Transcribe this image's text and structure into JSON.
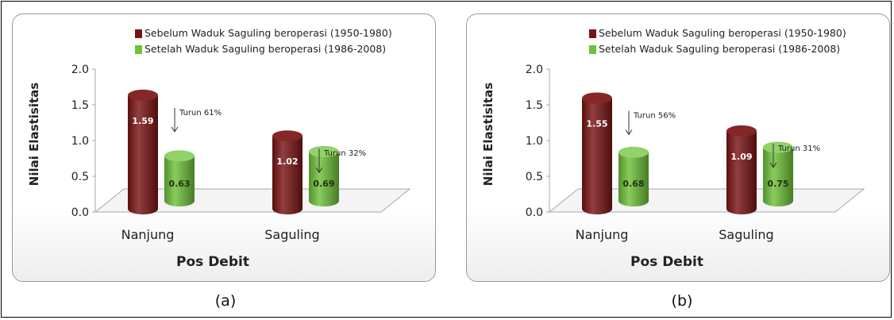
{
  "chart_data": [
    {
      "type": "bar",
      "panel_caption": "(a)",
      "categories": [
        "Nanjung",
        "Saguling"
      ],
      "series": [
        {
          "name": "Sebelum Waduk Saguling beroperasi (1950-1980)",
          "values": [
            1.59,
            1.02
          ],
          "color": "#7a1414"
        },
        {
          "name": "Setelah Waduk Saguling beroperasi (1986-2008)",
          "values": [
            0.63,
            0.69
          ],
          "color": "#6fc13a"
        }
      ],
      "annotations": [
        "Turun 61%",
        "Turun 32%"
      ],
      "xlabel": "Pos Debit",
      "ylabel": "Nilai Elastisitas",
      "yticks": [
        "0.0",
        "0.5",
        "1.0",
        "1.5",
        "2.0"
      ],
      "ylim": [
        0,
        2.0
      ],
      "legend_position": "top-right",
      "style": "3d-cylinder",
      "grid": false
    },
    {
      "type": "bar",
      "panel_caption": "(b)",
      "categories": [
        "Nanjung",
        "Saguling"
      ],
      "series": [
        {
          "name": "Sebelum Waduk Saguling beroperasi (1950-1980)",
          "values": [
            1.55,
            1.09
          ],
          "color": "#7a1414"
        },
        {
          "name": "Setelah Waduk Saguling beroperasi (1986-2008)",
          "values": [
            0.68,
            0.75
          ],
          "color": "#6fc13a"
        }
      ],
      "annotations": [
        "Turun 56%",
        "Turun 31%"
      ],
      "xlabel": "Pos Debit",
      "ylabel": "Nilai Elastisitas",
      "yticks": [
        "0.0",
        "0.5",
        "1.0",
        "1.5",
        "2.0"
      ],
      "ylim": [
        0,
        2.0
      ],
      "legend_position": "top-right",
      "style": "3d-cylinder",
      "grid": false
    }
  ]
}
